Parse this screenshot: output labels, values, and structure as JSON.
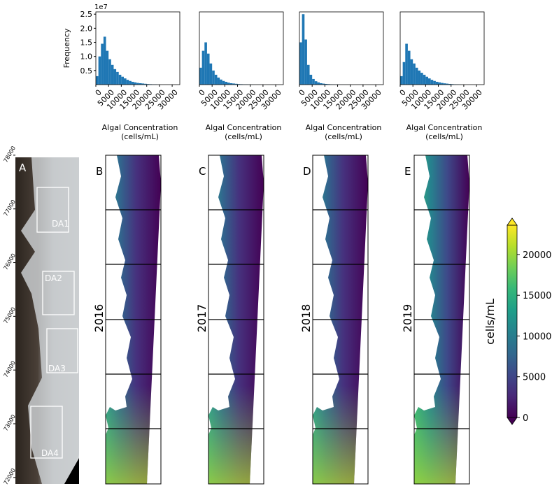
{
  "chart_data": [
    {
      "type": "histogram",
      "color": "#1f77b4",
      "ylabel": "Frequency",
      "offset_label": "1e7",
      "xlabel": "Algal Concentration\n(cells/mL)",
      "bins": [
        0,
        1000,
        2000,
        3000,
        4000,
        5000,
        6000,
        7000,
        8000,
        9000,
        10000,
        11000,
        12000,
        13000,
        14000,
        15000,
        16000,
        17000,
        18000,
        19000,
        20000,
        21000,
        22000,
        23000,
        24000
      ],
      "counts": [
        0.3,
        1.0,
        1.45,
        1.7,
        1.2,
        0.9,
        0.7,
        0.55,
        0.45,
        0.35,
        0.28,
        0.22,
        0.17,
        0.13,
        0.1,
        0.08,
        0.06,
        0.05,
        0.04,
        0.03,
        0.02,
        0.015,
        0.01,
        0.01
      ],
      "xlim": [
        0,
        33000
      ],
      "xticks": [
        0,
        5000,
        10000,
        15000,
        20000,
        25000,
        30000
      ],
      "ylim": [
        0,
        2.58
      ],
      "yticks": [
        {
          "value": 0.5,
          "label": "0.5"
        },
        {
          "value": 1,
          "label": "1.0"
        },
        {
          "value": 1.5,
          "label": "1.5"
        },
        {
          "value": 2,
          "label": "2.0"
        },
        {
          "value": 2.5,
          "label": "2.5"
        }
      ]
    },
    {
      "type": "histogram",
      "color": "#1f77b4",
      "xlabel": "Algal Concentration\n(cells/mL)",
      "bins": [
        0,
        1000,
        2000,
        3000,
        4000,
        5000,
        6000,
        7000,
        8000,
        9000,
        10000,
        11000,
        12000,
        13000,
        14000,
        15000,
        16000,
        17000,
        18000,
        19000,
        20000,
        21000,
        22000,
        23000,
        24000
      ],
      "counts": [
        0.6,
        1.2,
        1.5,
        1.1,
        0.75,
        0.5,
        0.35,
        0.25,
        0.18,
        0.13,
        0.1,
        0.07,
        0.05,
        0.04,
        0.03,
        0.02,
        0.015,
        0.01,
        0.01,
        0.005,
        0.005,
        0.003,
        0.002,
        0.002
      ],
      "xlim": [
        0,
        33000
      ],
      "xticks": [
        0,
        5000,
        10000,
        15000,
        20000,
        25000,
        30000
      ],
      "ylim": [
        0,
        2.58
      ]
    },
    {
      "type": "histogram",
      "color": "#1f77b4",
      "xlabel": "Algal Concentration\n(cells/mL)",
      "bins": [
        0,
        1000,
        2000,
        3000,
        4000,
        5000,
        6000,
        7000,
        8000,
        9000,
        10000,
        11000,
        12000,
        13000,
        14000,
        15000,
        16000,
        17000,
        18000,
        19000,
        20000,
        21000,
        22000,
        23000,
        24000
      ],
      "counts": [
        1.5,
        2.5,
        1.6,
        0.7,
        0.35,
        0.2,
        0.12,
        0.08,
        0.05,
        0.035,
        0.025,
        0.018,
        0.012,
        0.008,
        0.006,
        0.004,
        0.003,
        0.002,
        0.002,
        0.001,
        0.001,
        0.001,
        0.001,
        0.001
      ],
      "xlim": [
        0,
        33000
      ],
      "xticks": [
        0,
        5000,
        10000,
        15000,
        20000,
        25000,
        30000
      ],
      "ylim": [
        0,
        2.58
      ]
    },
    {
      "type": "histogram",
      "color": "#1f77b4",
      "xlabel": "Algal Concentration\n(cells/mL)",
      "bins": [
        0,
        1000,
        2000,
        3000,
        4000,
        5000,
        6000,
        7000,
        8000,
        9000,
        10000,
        11000,
        12000,
        13000,
        14000,
        15000,
        16000,
        17000,
        18000,
        19000,
        20000,
        21000,
        22000,
        23000,
        24000
      ],
      "counts": [
        0.3,
        0.8,
        1.45,
        1.2,
        0.9,
        0.75,
        0.6,
        0.5,
        0.42,
        0.35,
        0.28,
        0.22,
        0.17,
        0.13,
        0.1,
        0.08,
        0.06,
        0.045,
        0.035,
        0.025,
        0.018,
        0.012,
        0.008,
        0.005
      ],
      "xlim": [
        0,
        33000
      ],
      "xticks": [
        0,
        5000,
        10000,
        15000,
        20000,
        25000,
        30000
      ],
      "ylim": [
        0,
        2.58
      ]
    },
    {
      "type": "colorbar",
      "label": "cells/mL",
      "clim": [
        0,
        23600
      ],
      "yticks": [
        0,
        5000,
        10000,
        15000,
        20000
      ],
      "colormap": [
        "#440154",
        "#482878",
        "#3e4989",
        "#31688e",
        "#26828e",
        "#1f9e89",
        "#35b779",
        "#6ece58",
        "#b5de2b",
        "#fde725"
      ]
    }
  ],
  "maps": {
    "overview": {
      "letter": "A",
      "regions": [
        "DA1",
        "DA2",
        "DA3",
        "DA4"
      ],
      "ylim": [
        71880,
        77960
      ],
      "yticks": [
        72000,
        73000,
        74000,
        75000,
        76000,
        77000,
        78000
      ]
    },
    "years": [
      {
        "letter": "B",
        "year": "2016"
      },
      {
        "letter": "C",
        "year": "2017"
      },
      {
        "letter": "D",
        "year": "2018"
      },
      {
        "letter": "E",
        "year": "2019"
      }
    ]
  }
}
